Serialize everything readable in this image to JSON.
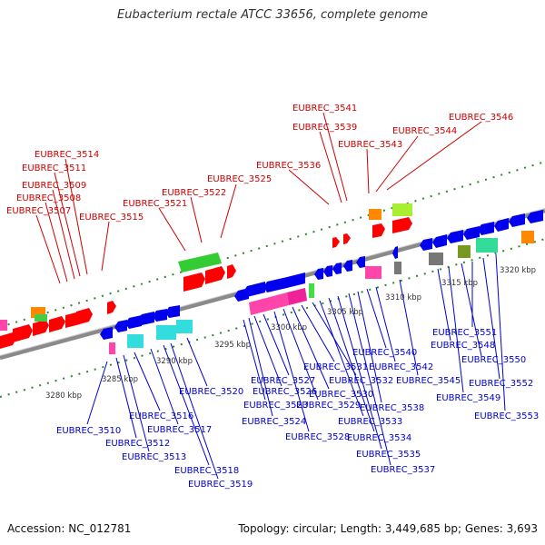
{
  "title": "Eubacterium rectale ATCC 33656, complete genome",
  "footer": {
    "accession": "Accession: NC_012781",
    "stats": "Topology: circular; Length: 3,449,685 bp; Genes: 3,693"
  },
  "colors": {
    "forward_label": "#cc0000",
    "reverse_label": "#0000cc",
    "backbone": "#8a8a8a",
    "dots": "#2a8a2a"
  },
  "scale_ticks": [
    {
      "label": "3280 kbp"
    },
    {
      "label": "3285 kbp"
    },
    {
      "label": "3290 kbp"
    },
    {
      "label": "3295 kbp"
    },
    {
      "label": "3300 kbp"
    },
    {
      "label": "3305 kbp"
    },
    {
      "label": "3310 kbp"
    },
    {
      "label": "3315 kbp"
    },
    {
      "label": "3320 kbp"
    }
  ],
  "forward_labels": [
    "EUBREC_3507",
    "EUBREC_3508",
    "EUBREC_3509",
    "EUBREC_3511",
    "EUBREC_3514",
    "EUBREC_3515",
    "EUBREC_3521",
    "EUBREC_3522",
    "EUBREC_3525",
    "EUBREC_3536",
    "EUBREC_3539",
    "EUBREC_3541",
    "EUBREC_3543",
    "EUBREC_3544",
    "EUBREC_3546"
  ],
  "reverse_labels": [
    "EUBREC_3510",
    "EUBREC_3512",
    "EUBREC_3513",
    "EUBREC_3516",
    "EUBREC_3517",
    "EUBREC_3518",
    "EUBREC_3519",
    "EUBREC_3520",
    "EUBREC_3523",
    "EUBREC_3524",
    "EUBREC_3526",
    "EUBREC_3527",
    "EUBREC_3528",
    "EUBREC_3529",
    "EUBREC_3530",
    "EUBREC_3531",
    "EUBREC_3532",
    "EUBREC_3533",
    "EUBREC_3534",
    "EUBREC_3535",
    "EUBREC_3537",
    "EUBREC_3538",
    "EUBREC_3540",
    "EUBREC_3542",
    "EUBREC_3545",
    "EUBREC_3548",
    "EUBREC_3549",
    "EUBREC_3550",
    "EUBREC_3551",
    "EUBREC_3552",
    "EUBREC_3553"
  ]
}
